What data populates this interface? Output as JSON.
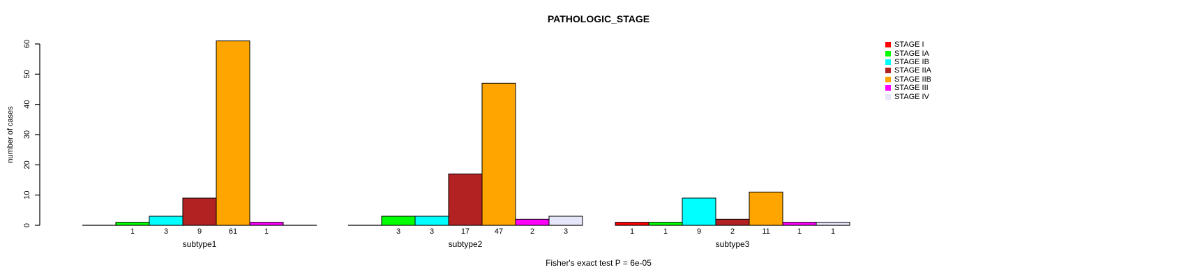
{
  "chart_data": {
    "type": "bar",
    "title": "PATHOLOGIC_STAGE",
    "ylabel": "number of cases",
    "xlabel": "",
    "ylim": [
      0,
      60
    ],
    "yticks": [
      0,
      10,
      20,
      30,
      40,
      50,
      60
    ],
    "grid": false,
    "legend_position": "top-right",
    "annotation": "Fisher's exact test P = 6e-05",
    "categories": [
      "subtype1",
      "subtype2",
      "subtype3"
    ],
    "series": [
      {
        "name": "STAGE I",
        "color": "#ff0000",
        "values": [
          0,
          0,
          1
        ]
      },
      {
        "name": "STAGE IA",
        "color": "#00ff00",
        "values": [
          1,
          3,
          1
        ]
      },
      {
        "name": "STAGE IB",
        "color": "#00ffff",
        "values": [
          3,
          3,
          9
        ]
      },
      {
        "name": "STAGE IIA",
        "color": "#b22222",
        "values": [
          9,
          17,
          2
        ]
      },
      {
        "name": "STAGE IIB",
        "color": "#ffa500",
        "values": [
          61,
          47,
          11
        ]
      },
      {
        "name": "STAGE III",
        "color": "#ff00ff",
        "values": [
          1,
          2,
          1
        ]
      },
      {
        "name": "STAGE IV",
        "color": "#e6e6fa",
        "values": [
          0,
          3,
          1
        ]
      }
    ],
    "bar_value_labels": {
      "subtype1": [
        null,
        1,
        3,
        9,
        61,
        1,
        null
      ],
      "subtype2": [
        null,
        3,
        3,
        17,
        47,
        2,
        3
      ],
      "subtype3": [
        1,
        1,
        9,
        2,
        11,
        1,
        1
      ]
    },
    "axis_color": "#000000",
    "bar_border_color": "#000000"
  }
}
